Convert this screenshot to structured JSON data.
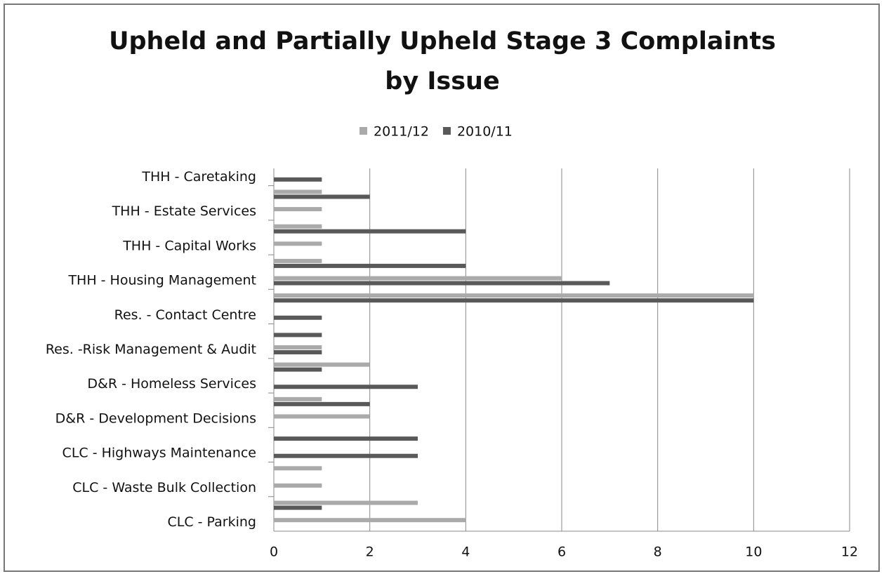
{
  "chart_data": {
    "type": "hbar",
    "title": [
      "Upheld and Partially Upheld Stage 3 Complaints",
      "by Issue"
    ],
    "categories": [
      "THH - Caretaking",
      null,
      "THH - Estate Services",
      null,
      "THH - Capital Works",
      null,
      "THH - Housing Management",
      null,
      "Res. - Contact Centre",
      null,
      "Res. -Risk Management & Audit",
      null,
      "D&R - Homeless Services",
      null,
      "D&R - Development Decisions",
      null,
      "CLC - Highways Maintenance",
      null,
      "CLC - Waste Bulk Collection",
      null,
      "CLC - Parking"
    ],
    "series": [
      {
        "name": "2011/12",
        "color": "#aaaaaa",
        "values": [
          0,
          1,
          1,
          1,
          1,
          1,
          6,
          10,
          0,
          0,
          1,
          2,
          0,
          1,
          2,
          0,
          0,
          1,
          1,
          3,
          4
        ]
      },
      {
        "name": "2010/11",
        "color": "#595959",
        "values": [
          1,
          2,
          0,
          4,
          0,
          4,
          7,
          10,
          1,
          1,
          1,
          1,
          3,
          2,
          0,
          3,
          3,
          0,
          0,
          1,
          0
        ]
      }
    ],
    "xlim": [
      0,
      12
    ],
    "xticks": [
      0,
      2,
      4,
      6,
      8,
      10,
      12
    ],
    "grid": true
  }
}
